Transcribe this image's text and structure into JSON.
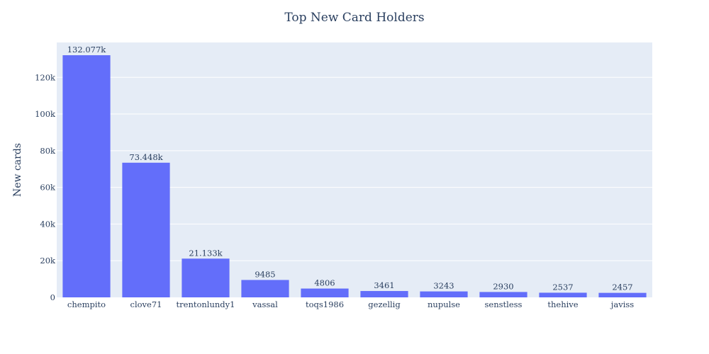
{
  "chart_data": {
    "type": "bar",
    "title": "Top New Card Holders",
    "xlabel": "",
    "ylabel": "New cards",
    "categories": [
      "chempito",
      "clove71",
      "trentonlundy1",
      "vassal",
      "toqs1986",
      "gezellig",
      "nupulse",
      "senstless",
      "thehive",
      "javiss"
    ],
    "values": [
      132077,
      73448,
      21133,
      9485,
      4806,
      3461,
      3243,
      2930,
      2537,
      2457
    ],
    "data_labels": [
      "132.077k",
      "73.448k",
      "21.133k",
      "9485",
      "4806",
      "3461",
      "3243",
      "2930",
      "2537",
      "2457"
    ],
    "ylim": [
      0,
      139028
    ],
    "yticks": [
      0,
      20000,
      40000,
      60000,
      80000,
      100000,
      120000
    ],
    "ytick_labels": [
      "0",
      "20k",
      "40k",
      "60k",
      "80k",
      "100k",
      "120k"
    ],
    "grid": true,
    "legend": "none",
    "colors": {
      "bar": "#636efa",
      "plot_bg": "#e5ecf6",
      "grid": "#ffffff",
      "text": "#2a3f5f"
    }
  }
}
